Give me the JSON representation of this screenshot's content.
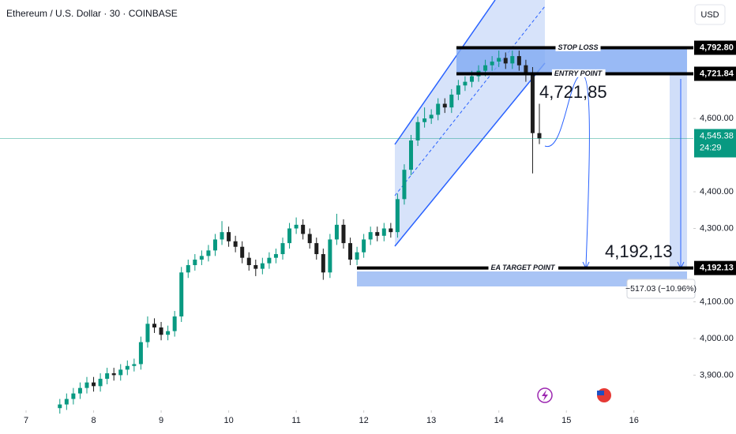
{
  "header": {
    "symbol": "Ethereum / U.S. Dollar · 30 · COINBASE",
    "currency": "USD"
  },
  "chart_data": {
    "type": "candlestick",
    "x": [
      7.5,
      7.6,
      7.7,
      7.8,
      7.9,
      8.0,
      8.1,
      8.2,
      8.3,
      8.4,
      8.5,
      8.6,
      8.7,
      8.8,
      8.9,
      9.0,
      9.1,
      9.2,
      9.3,
      9.4,
      9.5,
      9.6,
      9.7,
      9.8,
      9.9,
      10.0,
      10.1,
      10.2,
      10.3,
      10.4,
      10.5,
      10.6,
      10.7,
      10.8,
      10.9,
      11.0,
      11.1,
      11.2,
      11.3,
      11.4,
      11.5,
      11.6,
      11.7,
      11.8,
      11.9,
      12.0,
      12.1,
      12.2,
      12.3,
      12.4,
      12.5,
      12.6,
      12.7,
      12.8,
      12.9,
      13.0,
      13.1,
      13.2,
      13.3,
      13.4,
      13.5,
      13.6,
      13.7,
      13.8,
      13.9,
      14.0,
      14.1,
      14.2,
      14.3,
      14.4,
      14.5,
      14.6
    ],
    "open": [
      3810,
      3820,
      3835,
      3850,
      3865,
      3880,
      3870,
      3890,
      3905,
      3900,
      3915,
      3925,
      3930,
      3990,
      4040,
      4030,
      4010,
      4020,
      4060,
      4180,
      4200,
      4215,
      4225,
      4240,
      4270,
      4290,
      4265,
      4250,
      4220,
      4200,
      4190,
      4205,
      4220,
      4230,
      4260,
      4300,
      4310,
      4285,
      4260,
      4230,
      4180,
      4270,
      4310,
      4260,
      4215,
      4235,
      4270,
      4290,
      4280,
      4300,
      4290,
      4380,
      4460,
      4540,
      4590,
      4600,
      4610,
      4640,
      4630,
      4665,
      4690,
      4700,
      4715,
      4730,
      4745,
      4755,
      4765,
      4750,
      4770,
      4745,
      4725,
      4560
    ],
    "high": [
      3835,
      3850,
      3865,
      3880,
      3895,
      3895,
      3905,
      3920,
      3920,
      3930,
      3940,
      3945,
      4005,
      4060,
      4055,
      4045,
      4035,
      4075,
      4195,
      4215,
      4230,
      4240,
      4255,
      4285,
      4320,
      4305,
      4280,
      4265,
      4235,
      4215,
      4220,
      4235,
      4245,
      4275,
      4315,
      4330,
      4325,
      4300,
      4275,
      4245,
      4285,
      4340,
      4325,
      4275,
      4250,
      4285,
      4305,
      4305,
      4315,
      4315,
      4395,
      4475,
      4555,
      4605,
      4630,
      4625,
      4655,
      4655,
      4680,
      4705,
      4715,
      4730,
      4745,
      4760,
      4770,
      4785,
      4780,
      4785,
      4785,
      4760,
      4740,
      4640
    ],
    "low": [
      3795,
      3805,
      3820,
      3835,
      3850,
      3855,
      3855,
      3875,
      3885,
      3885,
      3900,
      3910,
      3915,
      3975,
      4015,
      3995,
      3995,
      4005,
      4045,
      4165,
      4185,
      4200,
      4210,
      4225,
      4255,
      4250,
      4235,
      4205,
      4185,
      4170,
      4175,
      4190,
      4205,
      4215,
      4245,
      4285,
      4270,
      4245,
      4215,
      4160,
      4165,
      4255,
      4245,
      4200,
      4200,
      4220,
      4255,
      4265,
      4265,
      4275,
      4275,
      4365,
      4445,
      4525,
      4575,
      4585,
      4595,
      4615,
      4615,
      4650,
      4675,
      4685,
      4700,
      4715,
      4730,
      4740,
      4735,
      4735,
      4730,
      4700,
      4450,
      4530
    ],
    "close": [
      3820,
      3835,
      3850,
      3865,
      3880,
      3870,
      3890,
      3905,
      3900,
      3915,
      3925,
      3930,
      3990,
      4040,
      4030,
      4010,
      4020,
      4060,
      4180,
      4200,
      4215,
      4225,
      4240,
      4270,
      4290,
      4265,
      4250,
      4220,
      4200,
      4190,
      4205,
      4220,
      4230,
      4260,
      4300,
      4310,
      4285,
      4260,
      4230,
      4180,
      4270,
      4310,
      4260,
      4215,
      4235,
      4270,
      4290,
      4280,
      4300,
      4290,
      4380,
      4460,
      4540,
      4590,
      4600,
      4610,
      4640,
      4630,
      4665,
      4690,
      4700,
      4715,
      4730,
      4745,
      4755,
      4765,
      4750,
      4770,
      4745,
      4725,
      4560,
      4545.38
    ],
    "up_color": "#089981",
    "down_color": "#1e1e1e",
    "xlim": [
      6.614,
      16.88
    ],
    "xticks": [
      7,
      8,
      9,
      10,
      11,
      12,
      13,
      14,
      15,
      16
    ],
    "ylim": [
      3804,
      4923
    ],
    "yticks": [
      {
        "value": 4600,
        "label": "4,600.00"
      },
      {
        "value": 4400,
        "label": "4,400.00"
      },
      {
        "value": 4300,
        "label": "4,300.00"
      },
      {
        "value": 4100,
        "label": "4,100.00"
      },
      {
        "value": 4000,
        "label": "4,000.00"
      },
      {
        "value": 3900,
        "label": "3,900.00"
      }
    ],
    "levels": [
      {
        "name": "STOP LOSS",
        "value": 4792.8,
        "label": "4,792.80"
      },
      {
        "name": "ENTRY POINT",
        "value": 4721.84,
        "label": "4,721.84"
      },
      {
        "name": "EA TARGET POINT",
        "value": 4192.13,
        "label": "4,192.13"
      }
    ],
    "last_price": {
      "value": 4545.38,
      "label": "4,545.38",
      "countdown": "24:29",
      "color": "#089981"
    },
    "annotations": {
      "entry": "4,721,85",
      "target": "4,192,13",
      "measure": "−517.03 (−10.96%)"
    }
  }
}
